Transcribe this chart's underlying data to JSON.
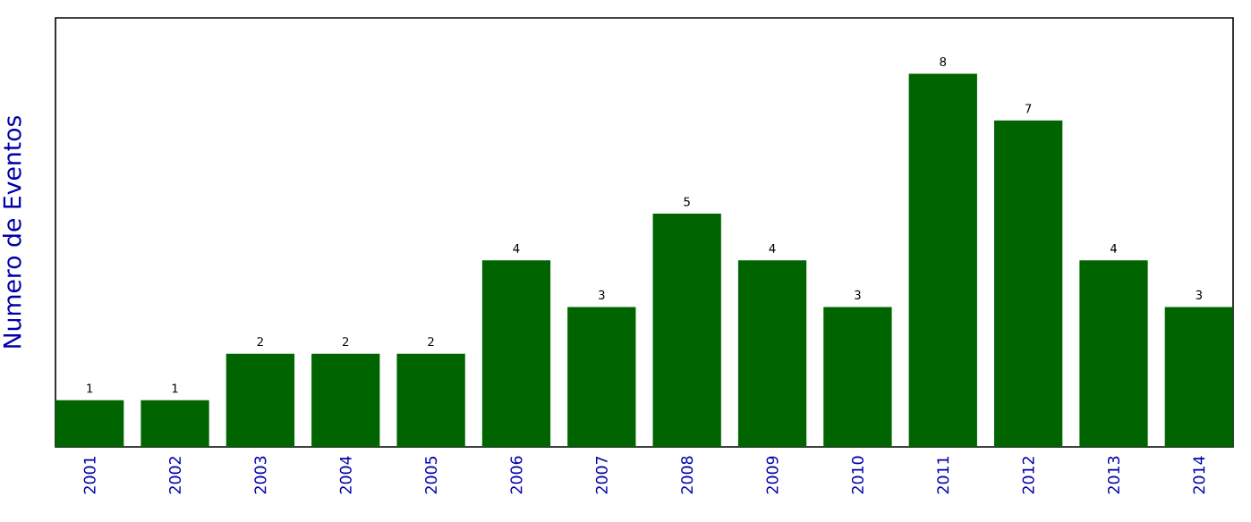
{
  "chart_data": {
    "type": "bar",
    "ylabel": "Numero de Eventos",
    "categories": [
      "2001",
      "2002",
      "2003",
      "2004",
      "2005",
      "2006",
      "2007",
      "2008",
      "2009",
      "2010",
      "2011",
      "2012",
      "2013",
      "2014"
    ],
    "values": [
      1,
      1,
      2,
      2,
      2,
      4,
      3,
      5,
      4,
      3,
      8,
      7,
      4,
      3
    ],
    "color": "#006400",
    "ylim": [
      0,
      9.2
    ],
    "data_labels": true,
    "tick_labels": "x"
  }
}
